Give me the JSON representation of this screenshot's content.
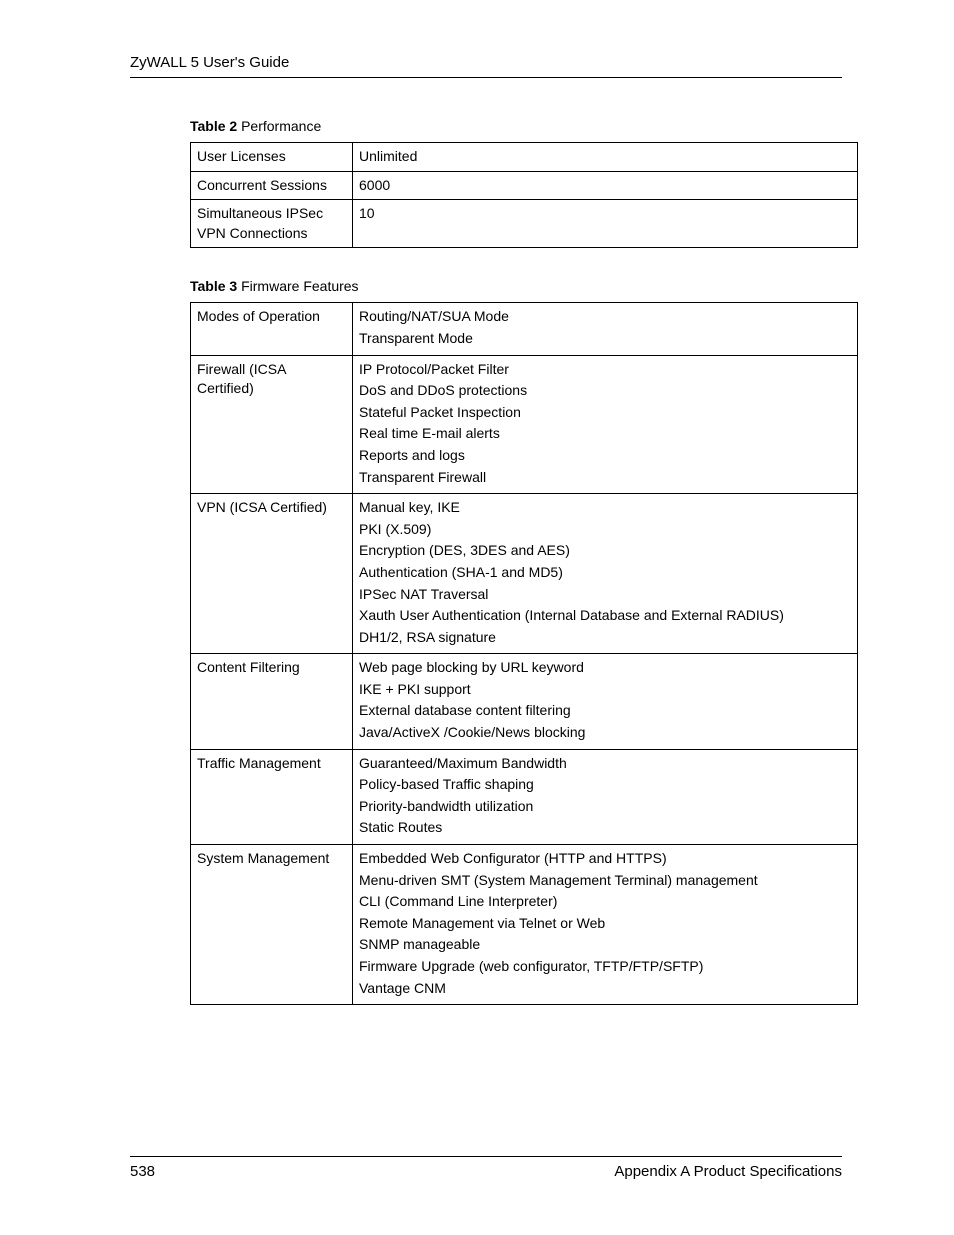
{
  "header": "ZyWALL 5 User's Guide",
  "table2": {
    "caption_bold": "Table 2",
    "caption_rest": "   Performance",
    "rows": [
      {
        "label": "User Licenses",
        "value": "Unlimited"
      },
      {
        "label": "Concurrent Sessions",
        "value": "6000"
      },
      {
        "label": "Simultaneous IPSec VPN Connections",
        "value": "10"
      }
    ]
  },
  "table3": {
    "caption_bold": "Table 3",
    "caption_rest": "   Firmware Features",
    "rows": [
      {
        "label": "Modes of Operation",
        "lines": [
          "Routing/NAT/SUA Mode",
          "Transparent Mode"
        ]
      },
      {
        "label": "Firewall (ICSA Certified)",
        "lines": [
          "IP Protocol/Packet Filter",
          "DoS and DDoS protections",
          "Stateful Packet Inspection",
          "Real time E-mail alerts",
          "Reports and logs",
          "Transparent Firewall"
        ]
      },
      {
        "label": "VPN (ICSA Certified)",
        "lines": [
          "Manual key, IKE",
          "PKI (X.509)",
          "Encryption (DES, 3DES and AES)",
          "Authentication (SHA-1 and MD5)",
          "IPSec NAT Traversal",
          "Xauth User Authentication (Internal Database and External RADIUS)",
          "DH1/2, RSA signature"
        ]
      },
      {
        "label": "Content Filtering",
        "lines": [
          "Web page blocking by URL keyword",
          "IKE + PKI support",
          "External database content filtering",
          "Java/ActiveX /Cookie/News blocking"
        ]
      },
      {
        "label": "Traffic Management",
        "lines": [
          "Guaranteed/Maximum Bandwidth",
          "Policy-based Traffic shaping",
          "Priority-bandwidth utilization",
          "Static Routes"
        ]
      },
      {
        "label": "System Management",
        "lines": [
          "Embedded Web Configurator (HTTP and HTTPS)",
          "Menu-driven SMT (System Management Terminal) management",
          "CLI (Command Line Interpreter)",
          "Remote Management via Telnet or Web",
          "SNMP manageable",
          "Firmware Upgrade (web configurator, TFTP/FTP/SFTP)",
          "Vantage CNM"
        ]
      }
    ]
  },
  "footer": {
    "page_number": "538",
    "section": "Appendix A Product Specifications"
  }
}
